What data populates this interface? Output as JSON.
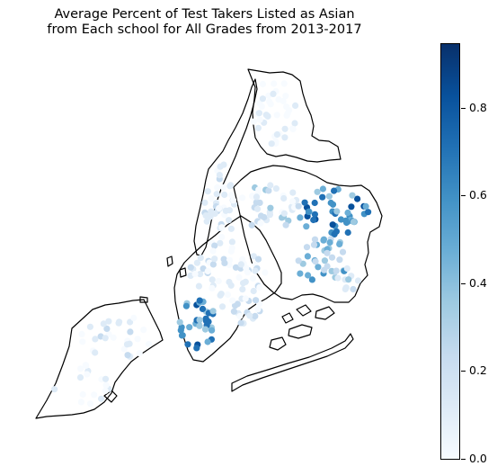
{
  "title": {
    "line1": "Average Percent of Test Takers Listed as Asian",
    "line2": "from Each school for All Grades from 2013-2017"
  },
  "colorbar": {
    "colormap": "Blues",
    "range": [
      0.0,
      0.95
    ],
    "ticks": [
      "0.0",
      "0.2",
      "0.4",
      "0.6",
      "0.8"
    ],
    "colors": [
      "#f7fbff",
      "#deebf7",
      "#c6dbef",
      "#9ecae1",
      "#6baed6",
      "#4292c6",
      "#2171b5",
      "#08519c",
      "#08306b"
    ]
  },
  "map": {
    "region": "New York City boroughs",
    "outline_color": "#000000",
    "marker": "circle"
  }
}
